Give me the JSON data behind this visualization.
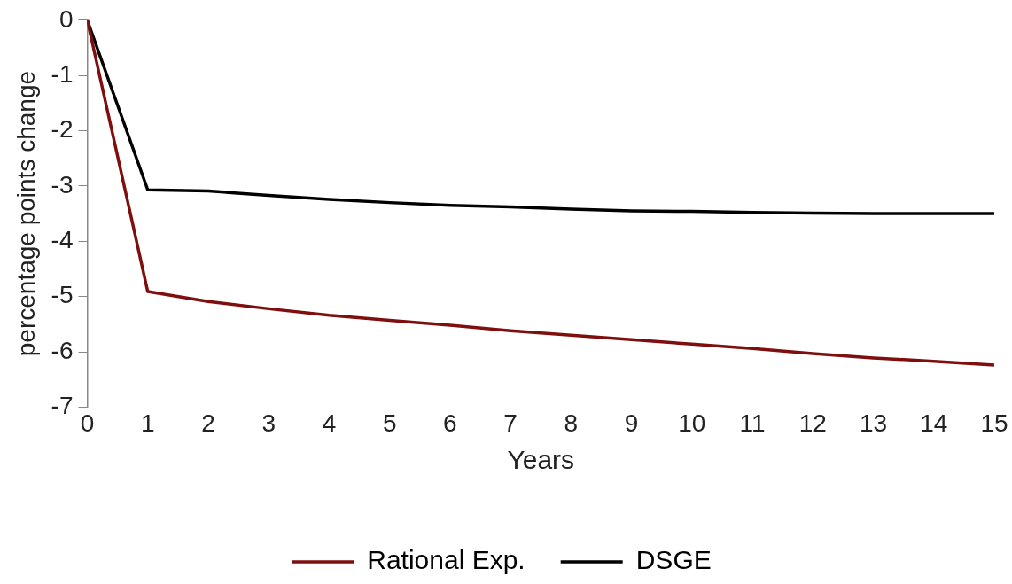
{
  "chart_data": {
    "type": "line",
    "xlabel": "Years",
    "ylabel": "percentage points change",
    "x": [
      0,
      1,
      2,
      3,
      4,
      5,
      6,
      7,
      8,
      9,
      10,
      11,
      12,
      13,
      14,
      15
    ],
    "xlim": [
      0,
      15
    ],
    "xticks": [
      0,
      1,
      2,
      3,
      4,
      5,
      6,
      7,
      8,
      9,
      10,
      11,
      12,
      13,
      14,
      15
    ],
    "ylim": [
      -7,
      0
    ],
    "yticks": [
      -7,
      -6,
      -5,
      -4,
      -3,
      -2,
      -1,
      0
    ],
    "grid": false,
    "legend": "bottom",
    "marker": "none",
    "line_style": "solid",
    "series": [
      {
        "name": "Rational Exp.",
        "color": "#7f0e0e",
        "values": [
          0,
          -4.91,
          -5.09,
          -5.22,
          -5.34,
          -5.43,
          -5.52,
          -5.62,
          -5.7,
          -5.78,
          -5.86,
          -5.94,
          -6.03,
          -6.11,
          -6.17,
          -6.24
        ]
      },
      {
        "name": "DSGE",
        "color": "#000000",
        "values": [
          0,
          -3.07,
          -3.09,
          -3.17,
          -3.24,
          -3.3,
          -3.35,
          -3.38,
          -3.42,
          -3.45,
          -3.46,
          -3.48,
          -3.49,
          -3.5,
          -3.5,
          -3.5
        ]
      }
    ]
  }
}
